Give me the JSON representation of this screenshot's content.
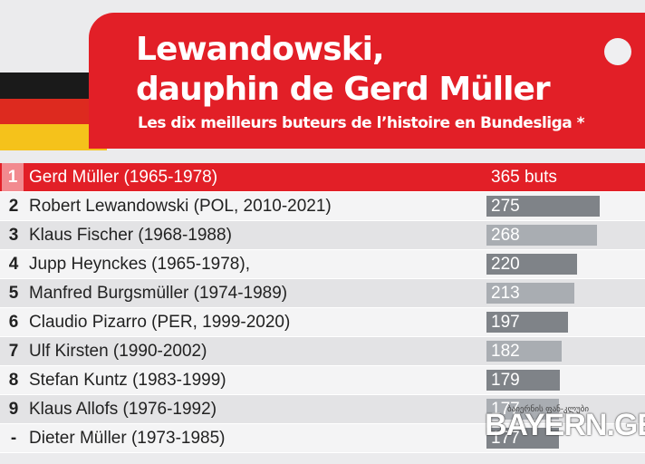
{
  "header": {
    "title_line1": "Lewandowski,",
    "title_line2": "dauphin de Gerd Müller",
    "subtitle": "Les dix meilleurs buteurs de l’histoire en Bundesliga *"
  },
  "colors": {
    "header_red": "#e21f27",
    "bar_top": "#e21f27",
    "bar_dark": "#7f8388",
    "bar_light": "#a9adb2",
    "flag_black": "#1a1a1a",
    "flag_red": "#dd2a1f",
    "flag_gold": "#f5c21b"
  },
  "chart_data": {
    "type": "bar",
    "orientation": "horizontal",
    "title": "Lewandowski, dauphin de Gerd Müller",
    "subtitle": "Les dix meilleurs buteurs de l’histoire en Bundesliga *",
    "xlim": [
      0,
      365
    ],
    "rows": [
      {
        "rank": "1",
        "name": "Gerd Müller (1965-1978)",
        "value": 365,
        "label": "365 buts"
      },
      {
        "rank": "2",
        "name": "Robert Lewandowski (POL, 2010-2021)",
        "value": 275,
        "label": "275"
      },
      {
        "rank": "3",
        "name": "Klaus Fischer (1968-1988)",
        "value": 268,
        "label": "268"
      },
      {
        "rank": "4",
        "name": "Jupp Heynckes (1965-1978),",
        "value": 220,
        "label": "220"
      },
      {
        "rank": "5",
        "name": "Manfred Burgsmüller (1974-1989)",
        "value": 213,
        "label": "213"
      },
      {
        "rank": "6",
        "name": "Claudio Pizarro (PER, 1999-2020)",
        "value": 197,
        "label": "197"
      },
      {
        "rank": "7",
        "name": "Ulf Kirsten (1990-2002)",
        "value": 182,
        "label": "182"
      },
      {
        "rank": "8",
        "name": "Stefan Kuntz (1983-1999)",
        "value": 179,
        "label": "179"
      },
      {
        "rank": "9",
        "name": "Klaus Allofs (1976-1992)",
        "value": 177,
        "label": "177"
      },
      {
        "rank": "-",
        "name": "Dieter Müller (1973-1985)",
        "value": 177,
        "label": "177"
      }
    ]
  },
  "watermark": {
    "small_text": "ბაიერნის ფან-კლუბი",
    "big_text": "BAYERN.GE"
  }
}
